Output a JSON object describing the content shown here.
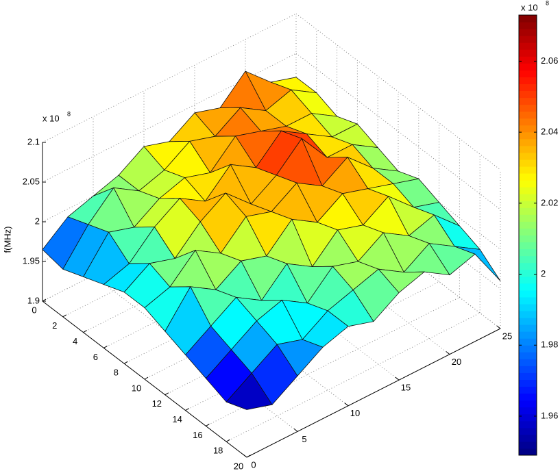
{
  "chart_data": {
    "type": "surface",
    "zlabel": "f(MHz)",
    "z_exponent_base": "x 10",
    "z_exponent": "8",
    "x": [
      0,
      2,
      4,
      6,
      8,
      10,
      12,
      14,
      16,
      18,
      20
    ],
    "y": [
      0,
      2.5,
      5,
      7.5,
      10,
      12.5,
      15,
      17.5,
      20,
      22.5,
      25
    ],
    "z": [
      [
        1.965,
        1.99,
        2.0,
        2.01,
        2.03,
        2.02,
        2.04,
        2.03,
        2.06,
        2.03,
        2.02
      ],
      [
        1.96,
        2.0,
        2.03,
        2.01,
        2.02,
        2.04,
        2.03,
        2.05,
        2.03,
        2.04,
        2.02
      ],
      [
        1.97,
        2.01,
        2.0,
        2.02,
        2.03,
        2.02,
        2.05,
        2.04,
        2.03,
        2.03,
        2.01
      ],
      [
        1.98,
        1.99,
        2.02,
        2.04,
        2.02,
        2.05,
        2.03,
        2.06,
        2.04,
        2.02,
        2.02
      ],
      [
        1.99,
        2.01,
        2.0,
        2.03,
        2.05,
        2.02,
        2.04,
        2.07,
        2.03,
        2.03,
        2.01
      ],
      [
        1.99,
        2.0,
        2.03,
        2.01,
        2.04,
        2.03,
        2.05,
        2.03,
        2.05,
        2.02,
        2.0
      ],
      [
        1.98,
        2.02,
        2.0,
        2.02,
        2.01,
        2.04,
        2.02,
        2.04,
        2.03,
        2.02,
        2.01
      ],
      [
        1.97,
        1.99,
        2.01,
        1.99,
        2.02,
        2.0,
        2.03,
        2.02,
        2.04,
        2.01,
        2.0
      ],
      [
        1.96,
        1.98,
        2.0,
        2.01,
        1.99,
        2.02,
        2.01,
        2.03,
        2.01,
        2.02,
        1.99
      ],
      [
        1.95,
        1.97,
        1.99,
        1.98,
        2.0,
        2.01,
        2.02,
        2.0,
        2.02,
        2.0,
        1.98
      ],
      [
        1.96,
        1.95,
        1.97,
        1.99,
        2.0,
        1.99,
        2.01,
        2.02,
        2.0,
        2.01,
        1.96
      ]
    ],
    "xlim": [
      0,
      20
    ],
    "xticks": [
      0,
      2,
      4,
      6,
      8,
      10,
      12,
      14,
      16,
      18,
      20
    ],
    "ylim": [
      0,
      25
    ],
    "yticks": [
      0,
      5,
      10,
      15,
      20,
      25
    ],
    "zlim": [
      1.9,
      2.1
    ],
    "zticks": [
      1.9,
      1.95,
      2,
      2.05,
      2.1
    ],
    "colormap": "jet",
    "clim": [
      1.949,
      2.073
    ],
    "cticks": [
      1.96,
      1.98,
      2,
      2.02,
      2.04,
      2.06
    ],
    "grid": true
  }
}
